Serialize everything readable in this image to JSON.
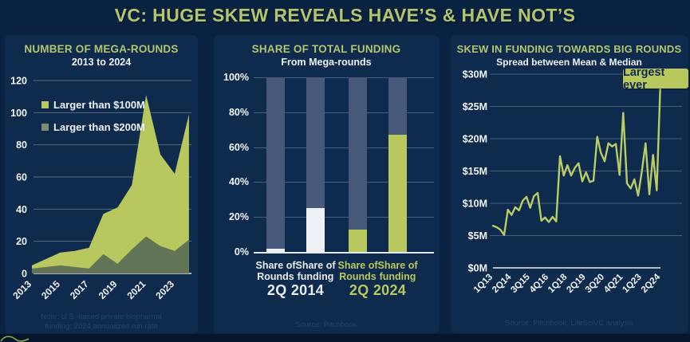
{
  "page": {
    "title": "VC: HUGE SKEW REVEALS HAVE’S & HAVE NOT’S"
  },
  "colors": {
    "background": "#0a2241",
    "panel": "#0e2b4e",
    "accent_green": "#b3c56e",
    "light_series": "#b9c75f",
    "dark_series": "#627455",
    "bar_track": "#46597b",
    "white_bar": "#eef1f4"
  },
  "panels": {
    "left": {
      "note_line1": "Note: U.S.-based private biopharma",
      "note_line2": "funding; 2024 annualized run rate",
      "source": "Source: Pitchbook"
    },
    "middle": {
      "source": "Source: Pitchbook"
    },
    "right": {
      "source": "Source: Pitchbook; LifeSciVC analysis"
    }
  },
  "chart_data": [
    {
      "type": "area",
      "title": "NUMBER OF MEGA-ROUNDS",
      "subtitle": "2013 to 2024",
      "x": [
        2013,
        2014,
        2015,
        2016,
        2017,
        2018,
        2019,
        2020,
        2021,
        2022,
        2023,
        2024
      ],
      "series": [
        {
          "name": "Larger than $100M",
          "color": "#b9c75f",
          "swatch": "#b9c75f",
          "values": [
            5,
            9,
            13,
            14,
            16,
            37,
            41,
            55,
            111,
            74,
            62,
            99
          ]
        },
        {
          "name": "Larger than $200M",
          "color": "#627455",
          "swatch": "#7d8c74",
          "values": [
            3,
            4,
            5,
            4,
            3,
            12,
            6,
            15,
            23,
            17,
            14,
            21
          ]
        }
      ],
      "ylim": [
        0,
        120
      ],
      "yticks": [
        0,
        20,
        40,
        60,
        80,
        100,
        120
      ],
      "xticks": [
        2013,
        2015,
        2017,
        2019,
        2021,
        2023
      ],
      "grid": true,
      "legend_position": "upper-left"
    },
    {
      "type": "bar",
      "title": "SHARE OF TOTAL FUNDING",
      "subtitle": "From Mega-rounds",
      "ylim": [
        0,
        100
      ],
      "yticks": [
        "0%",
        "20%",
        "40%",
        "60%",
        "80%",
        "100%"
      ],
      "track_color": "#46597b",
      "bars": [
        {
          "label_line1": "Share of",
          "label_line2": "Rounds",
          "group": "2Q 2014",
          "value_pct": 2,
          "color": "#eef1f4"
        },
        {
          "label_line1": "Share of",
          "label_line2": "funding",
          "group": "2Q 2014",
          "value_pct": 25,
          "color": "#eef1f4"
        },
        {
          "label_line1": "Share of",
          "label_line2": "Rounds",
          "group": "2Q 2024",
          "value_pct": 13,
          "color": "#b9c75f"
        },
        {
          "label_line1": "Share of",
          "label_line2": "funding",
          "group": "2Q 2024",
          "value_pct": 67,
          "color": "#b9c75f"
        }
      ],
      "groups": [
        {
          "label": "2Q 2014",
          "color": "#f2f4f6"
        },
        {
          "label": "2Q 2024",
          "color": "#b9c75f"
        }
      ]
    },
    {
      "type": "line",
      "title": "SKEW IN FUNDING TOWARDS BIG ROUNDS",
      "subtitle": "Spread between Mean & Median",
      "color": "#b9cc66",
      "annotation": "Largest ever",
      "ylim_musd": [
        0,
        30
      ],
      "yticks": [
        "$0M",
        "$5M",
        "$10M",
        "$15M",
        "$20M",
        "$25M",
        "$30M"
      ],
      "xticks": [
        "1Q13",
        "2Q14",
        "3Q15",
        "4Q16",
        "1Q18",
        "2Q19",
        "3Q20",
        "4Q21",
        "1Q23",
        "2Q24"
      ],
      "x": [
        "1Q13",
        "2Q13",
        "3Q13",
        "4Q13",
        "1Q14",
        "2Q14",
        "3Q14",
        "4Q14",
        "1Q15",
        "2Q15",
        "3Q15",
        "4Q15",
        "1Q16",
        "2Q16",
        "3Q16",
        "4Q16",
        "1Q17",
        "2Q17",
        "3Q17",
        "4Q17",
        "1Q18",
        "2Q18",
        "3Q18",
        "4Q18",
        "1Q19",
        "2Q19",
        "3Q19",
        "4Q19",
        "1Q20",
        "2Q20",
        "3Q20",
        "4Q20",
        "1Q21",
        "2Q21",
        "3Q21",
        "4Q21",
        "1Q22",
        "2Q22",
        "3Q22",
        "4Q22",
        "1Q23",
        "2Q23",
        "3Q23",
        "4Q23",
        "1Q24",
        "2Q24"
      ],
      "values_musd": [
        6.5,
        6.3,
        5.9,
        5.1,
        9.0,
        8.2,
        9.4,
        8.9,
        10.4,
        11.0,
        9.3,
        11.1,
        11.6,
        7.3,
        7.8,
        7.1,
        7.9,
        7.2,
        17.3,
        14.3,
        15.9,
        14.3,
        15.5,
        16.2,
        13.4,
        14.8,
        13.3,
        13.5,
        20.3,
        17.8,
        16.5,
        19.3,
        18.8,
        19.2,
        14.4,
        24.0,
        13.1,
        12.3,
        13.7,
        11.2,
        15.0,
        19.3,
        11.4,
        17.5,
        12.0,
        29.0
      ]
    }
  ]
}
